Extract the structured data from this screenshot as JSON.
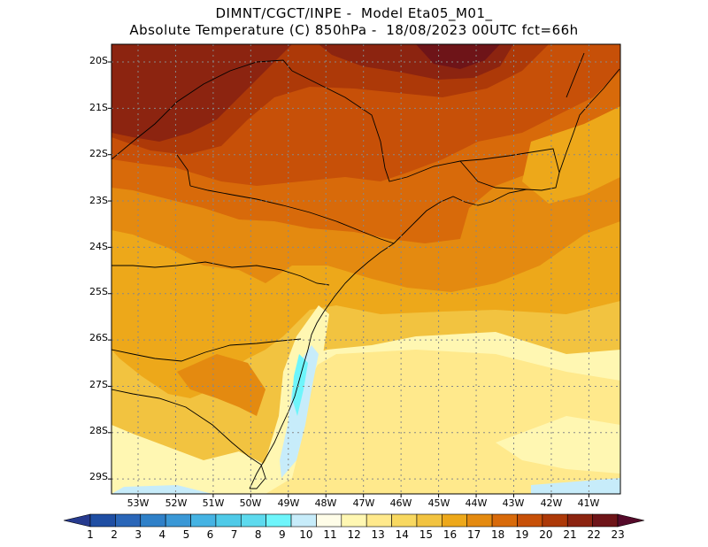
{
  "title": {
    "line1": "DIMNT/CGCT/INPE -  Model Eta05_M01_",
    "line2": "Absolute Temperature (C) 850hPa -  18/08/2023 00UTC fct=66h"
  },
  "lat_labels": [
    "20S",
    "21S",
    "22S",
    "23S",
    "24S",
    "25S",
    "26S",
    "27S",
    "28S",
    "29S"
  ],
  "lon_labels": [
    "53W",
    "52W",
    "51W",
    "50W",
    "49W",
    "48W",
    "47W",
    "46W",
    "45W",
    "44W",
    "43W",
    "42W",
    "41W"
  ],
  "colorbar": {
    "labels": [
      "1",
      "2",
      "3",
      "4",
      "5",
      "6",
      "7",
      "8",
      "9",
      "10",
      "11",
      "12",
      "13",
      "14",
      "15",
      "16",
      "17",
      "18",
      "19",
      "20",
      "21",
      "22",
      "23"
    ],
    "colors": [
      "#263a8e",
      "#1f4ea3",
      "#2a66b8",
      "#2f80c8",
      "#3a98d6",
      "#45b3e3",
      "#4fcae8",
      "#5ddaee",
      "#6ef5fb",
      "#c7ecfa",
      "#fffde8",
      "#fff7b2",
      "#ffe98c",
      "#f8d860",
      "#f2c340",
      "#eda81a",
      "#e48a10",
      "#d86a0a",
      "#c75008",
      "#ad3908",
      "#8c2410",
      "#6e1418",
      "#550a2a"
    ]
  }
}
